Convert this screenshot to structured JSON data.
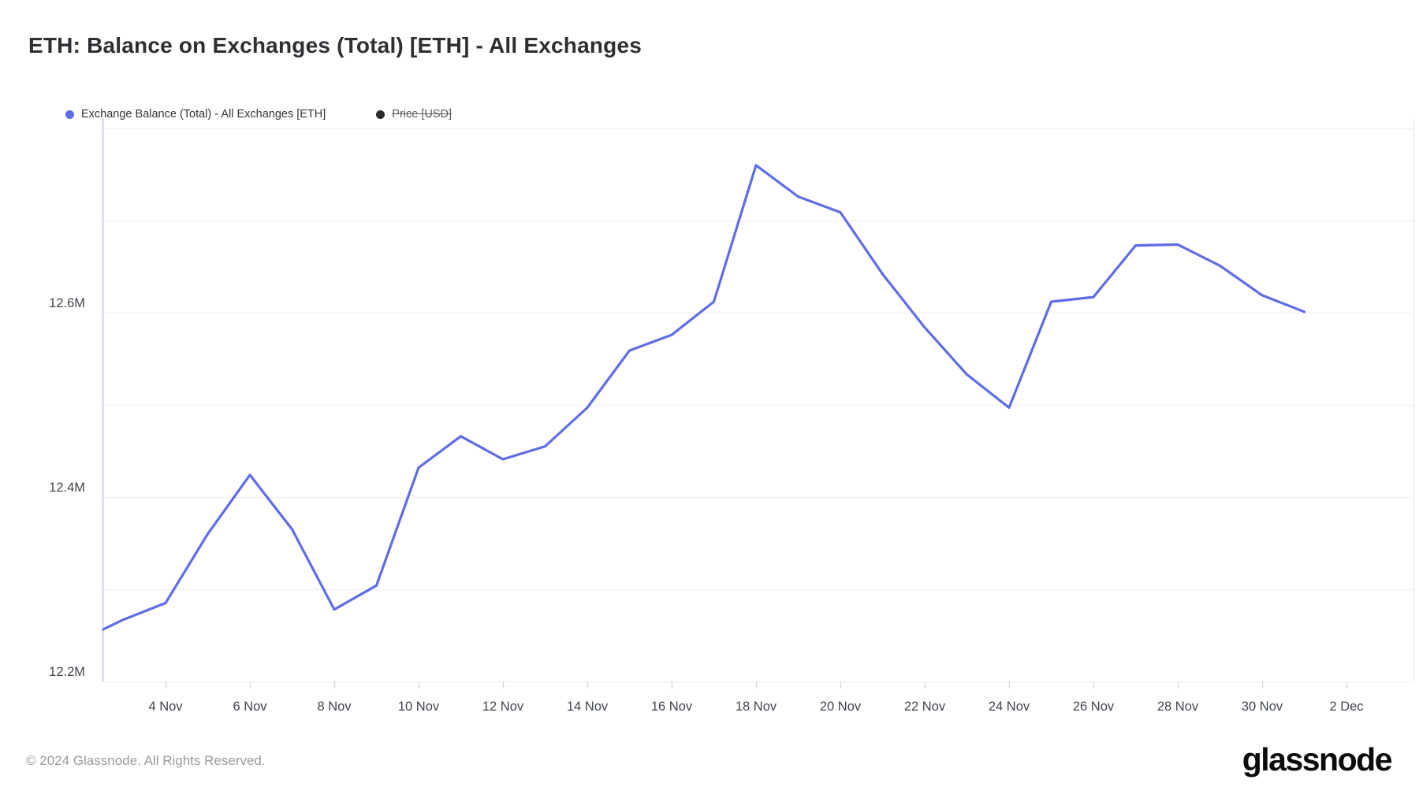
{
  "header": {
    "title": "ETH: Balance on Exchanges (Total) [ETH] - All Exchanges"
  },
  "legend": {
    "series1_label": "Exchange Balance (Total) - All Exchanges [ETH]",
    "series2_label": "Price [USD]"
  },
  "footer": {
    "copyright": "© 2024 Glassnode. All Rights Reserved.",
    "brand": "glassnode"
  },
  "colors": {
    "line": "#5e6de4",
    "legend_dot_active": "#5e6de4",
    "legend_dot_disabled": "#2a2a2a",
    "grid": "#f1f1f4",
    "axis": "#cdd3f0",
    "tick": "#d6d9e0",
    "right_border": "#edeff4",
    "label_text": "#40454e"
  },
  "chart_data": {
    "type": "line",
    "title": "ETH: Balance on Exchanges (Total) [ETH] - All Exchanges",
    "xlabel": "",
    "ylabel": "",
    "unit": "M ETH",
    "grid": "horizontal",
    "legend_position": "top-left",
    "series": [
      {
        "name": "Exchange Balance (Total) - All Exchanges [ETH]",
        "color": "#5e6de4",
        "visible": true
      },
      {
        "name": "Price [USD]",
        "color": "#2a2a2a",
        "visible": false
      }
    ],
    "x": [
      "2 Nov",
      "3 Nov",
      "4 Nov",
      "5 Nov",
      "6 Nov",
      "7 Nov",
      "8 Nov",
      "9 Nov",
      "10 Nov",
      "11 Nov",
      "12 Nov",
      "13 Nov",
      "14 Nov",
      "15 Nov",
      "16 Nov",
      "17 Nov",
      "18 Nov",
      "19 Nov",
      "20 Nov",
      "21 Nov",
      "22 Nov",
      "23 Nov",
      "24 Nov",
      "25 Nov",
      "26 Nov",
      "27 Nov",
      "28 Nov",
      "29 Nov",
      "30 Nov",
      "1 Dec"
    ],
    "values": [
      12.245,
      12.267,
      12.285,
      12.36,
      12.424,
      12.365,
      12.278,
      12.304,
      12.432,
      12.466,
      12.441,
      12.455,
      12.497,
      12.559,
      12.576,
      12.612,
      12.76,
      12.726,
      12.709,
      12.642,
      12.584,
      12.533,
      12.497,
      12.612,
      12.617,
      12.673,
      12.674,
      12.651,
      12.619,
      12.601
    ],
    "ylim": [
      12.2,
      12.81
    ],
    "y_ticks": [
      {
        "label": "12.2M",
        "value": 12.2
      },
      {
        "label": "12.4M",
        "value": 12.4
      },
      {
        "label": "12.6M",
        "value": 12.6
      }
    ],
    "y_gridlines": [
      12.2,
      12.3,
      12.4,
      12.5,
      12.6,
      12.7,
      12.8
    ],
    "x_ticks": [
      {
        "label": "4 Nov",
        "day_index": 2
      },
      {
        "label": "6 Nov",
        "day_index": 4
      },
      {
        "label": "8 Nov",
        "day_index": 6
      },
      {
        "label": "10 Nov",
        "day_index": 8
      },
      {
        "label": "12 Nov",
        "day_index": 10
      },
      {
        "label": "14 Nov",
        "day_index": 12
      },
      {
        "label": "16 Nov",
        "day_index": 14
      },
      {
        "label": "18 Nov",
        "day_index": 16
      },
      {
        "label": "20 Nov",
        "day_index": 18
      },
      {
        "label": "22 Nov",
        "day_index": 20
      },
      {
        "label": "24 Nov",
        "day_index": 22
      },
      {
        "label": "26 Nov",
        "day_index": 24
      },
      {
        "label": "28 Nov",
        "day_index": 26
      },
      {
        "label": "30 Nov",
        "day_index": 28
      },
      {
        "label": "2 Dec",
        "day_index": 30
      }
    ]
  }
}
